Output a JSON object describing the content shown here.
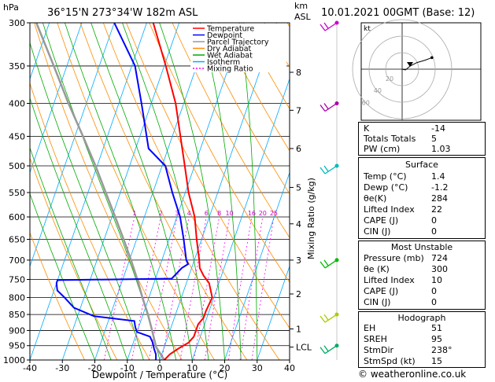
{
  "header": {
    "location": "36°15'N 273°34'W 182m ASL",
    "datetime": "10.01.2021 00GMT (Base: 12)",
    "left_unit": "hPa",
    "right_unit_top": "km",
    "right_unit_bottom": "ASL"
  },
  "chart_data": {
    "type": "line",
    "subtype": "skew-T log-P",
    "xlabel": "Dewpoint / Temperature (°C)",
    "ylabel_right": "Mixing Ratio (g/kg)",
    "ylabel_left": "hPa",
    "x_ticks": [
      -40,
      -30,
      -20,
      -10,
      0,
      10,
      20,
      30,
      40
    ],
    "pressure_ticks": [
      300,
      350,
      400,
      450,
      500,
      550,
      600,
      650,
      700,
      750,
      800,
      850,
      900,
      950,
      1000
    ],
    "altitude_km_ticks": [
      {
        "label": "8",
        "p": 358
      },
      {
        "label": "7",
        "p": 410
      },
      {
        "label": "6",
        "p": 470
      },
      {
        "label": "5",
        "p": 540
      },
      {
        "label": "4",
        "p": 615
      },
      {
        "label": "3",
        "p": 700
      },
      {
        "label": "2",
        "p": 790
      },
      {
        "label": "1",
        "p": 895
      },
      {
        "label": "LCL",
        "p": 955
      }
    ],
    "mixing_ratio_labels": [
      "1",
      "2",
      "3",
      "4",
      "6",
      "8",
      "10",
      "16",
      "20",
      "25"
    ],
    "mixing_ratio_values": [
      1,
      2,
      3,
      4,
      6,
      8,
      10,
      16,
      20,
      25
    ],
    "legend": [
      {
        "name": "Temperature",
        "color": "#ff0000"
      },
      {
        "name": "Dewpoint",
        "color": "#0000ff"
      },
      {
        "name": "Parcel Trajectory",
        "color": "#999999"
      },
      {
        "name": "Dry Adiabat",
        "color": "#ff8c00"
      },
      {
        "name": "Wet Adiabat",
        "color": "#00aa00"
      },
      {
        "name": "Isotherm",
        "color": "#00aaff"
      },
      {
        "name": "Mixing Ratio",
        "color": "#ff00ff"
      }
    ],
    "temperature": [
      {
        "p": 1000,
        "t": 1.4
      },
      {
        "p": 980,
        "t": 2.5
      },
      {
        "p": 960,
        "t": 4.5
      },
      {
        "p": 940,
        "t": 7
      },
      {
        "p": 920,
        "t": 8
      },
      {
        "p": 900,
        "t": 8
      },
      {
        "p": 880,
        "t": 8
      },
      {
        "p": 860,
        "t": 9
      },
      {
        "p": 840,
        "t": 9
      },
      {
        "p": 800,
        "t": 9.5
      },
      {
        "p": 760,
        "t": 7
      },
      {
        "p": 740,
        "t": 4.5
      },
      {
        "p": 720,
        "t": 2.5
      },
      {
        "p": 700,
        "t": 1.5
      },
      {
        "p": 650,
        "t": -1.5
      },
      {
        "p": 600,
        "t": -4.5
      },
      {
        "p": 550,
        "t": -9
      },
      {
        "p": 500,
        "t": -13
      },
      {
        "p": 450,
        "t": -17.5
      },
      {
        "p": 400,
        "t": -22.5
      },
      {
        "p": 350,
        "t": -29.5
      },
      {
        "p": 300,
        "t": -38
      }
    ],
    "dewpoint": [
      {
        "p": 1000,
        "t": -1.2
      },
      {
        "p": 980,
        "t": -1.8
      },
      {
        "p": 960,
        "t": -3
      },
      {
        "p": 940,
        "t": -4
      },
      {
        "p": 920,
        "t": -5.5
      },
      {
        "p": 905,
        "t": -10
      },
      {
        "p": 890,
        "t": -11
      },
      {
        "p": 870,
        "t": -12
      },
      {
        "p": 855,
        "t": -25
      },
      {
        "p": 830,
        "t": -32
      },
      {
        "p": 800,
        "t": -36
      },
      {
        "p": 780,
        "t": -39
      },
      {
        "p": 760,
        "t": -40
      },
      {
        "p": 752,
        "t": -40
      },
      {
        "p": 748,
        "t": -5
      },
      {
        "p": 720,
        "t": -3
      },
      {
        "p": 710,
        "t": -1.5
      },
      {
        "p": 700,
        "t": -2.5
      },
      {
        "p": 650,
        "t": -5.5
      },
      {
        "p": 600,
        "t": -9
      },
      {
        "p": 550,
        "t": -14
      },
      {
        "p": 500,
        "t": -19
      },
      {
        "p": 470,
        "t": -26
      },
      {
        "p": 400,
        "t": -33
      },
      {
        "p": 350,
        "t": -39
      },
      {
        "p": 300,
        "t": -50
      }
    ],
    "parcel": [
      {
        "p": 1000,
        "t": 1.4
      },
      {
        "p": 955,
        "t": -2.5
      },
      {
        "p": 900,
        "t": -5.5
      },
      {
        "p": 850,
        "t": -8.5
      },
      {
        "p": 800,
        "t": -12
      },
      {
        "p": 750,
        "t": -15.5
      },
      {
        "p": 700,
        "t": -19.5
      },
      {
        "p": 650,
        "t": -24
      },
      {
        "p": 600,
        "t": -29
      },
      {
        "p": 550,
        "t": -34.5
      },
      {
        "p": 500,
        "t": -40.5
      },
      {
        "p": 450,
        "t": -47.5
      },
      {
        "p": 400,
        "t": -55.5
      },
      {
        "p": 350,
        "t": -64
      },
      {
        "p": 300,
        "t": -74
      }
    ],
    "isotherms_c": [
      -110,
      -100,
      -90,
      -80,
      -70,
      -60,
      -50,
      -40,
      -30,
      -20,
      -10,
      0,
      10,
      20,
      30,
      40
    ],
    "dry_adiabats_k": [
      250,
      260,
      270,
      280,
      290,
      300,
      310,
      320,
      330,
      340,
      350,
      360,
      370,
      380,
      390,
      400,
      410,
      420
    ],
    "wet_adiabats_c": [
      -20,
      -15,
      -10,
      -5,
      0,
      5,
      10,
      15,
      20,
      25,
      30
    ],
    "wind_barbs": [
      {
        "p": 300,
        "color": "#cc00cc"
      },
      {
        "p": 400,
        "color": "#aa00aa"
      },
      {
        "p": 500,
        "color": "#00bbbb"
      },
      {
        "p": 700,
        "color": "#00bb00"
      },
      {
        "p": 850,
        "color": "#aacc00"
      },
      {
        "p": 950,
        "color": "#00aa66"
      }
    ]
  },
  "hodograph": {
    "label": "kt",
    "rings": [
      "20",
      "40",
      "60"
    ],
    "trace_kt": [
      [
        0,
        0
      ],
      [
        4,
        -1
      ],
      [
        10,
        4
      ],
      [
        18,
        8
      ],
      [
        28,
        11
      ],
      [
        36,
        14
      ]
    ]
  },
  "indices": {
    "rows": [
      {
        "label": "K",
        "value": "-14"
      },
      {
        "label": "Totals Totals",
        "value": "5"
      },
      {
        "label": "PW (cm)",
        "value": "1.03"
      }
    ]
  },
  "surface": {
    "title": "Surface",
    "rows": [
      {
        "label": "Temp (°C)",
        "value": "1.4"
      },
      {
        "label": "Dewp (°C)",
        "value": "-1.2"
      },
      {
        "label": "θe(K)",
        "value": "284"
      },
      {
        "label": "Lifted Index",
        "value": "22"
      },
      {
        "label": "CAPE (J)",
        "value": "0"
      },
      {
        "label": "CIN (J)",
        "value": "0"
      }
    ]
  },
  "most_unstable": {
    "title": "Most Unstable",
    "rows": [
      {
        "label": "Pressure (mb)",
        "value": "724"
      },
      {
        "label": "θe (K)",
        "value": "300"
      },
      {
        "label": "Lifted Index",
        "value": "10"
      },
      {
        "label": "CAPE (J)",
        "value": "0"
      },
      {
        "label": "CIN (J)",
        "value": "0"
      }
    ]
  },
  "hodograph_table": {
    "title": "Hodograph",
    "rows": [
      {
        "label": "EH",
        "value": "51"
      },
      {
        "label": "SREH",
        "value": "95"
      },
      {
        "label": "StmDir",
        "value": "238°"
      },
      {
        "label": "StmSpd (kt)",
        "value": "15"
      }
    ]
  },
  "footer": {
    "credit": "© weatheronline.co.uk"
  }
}
